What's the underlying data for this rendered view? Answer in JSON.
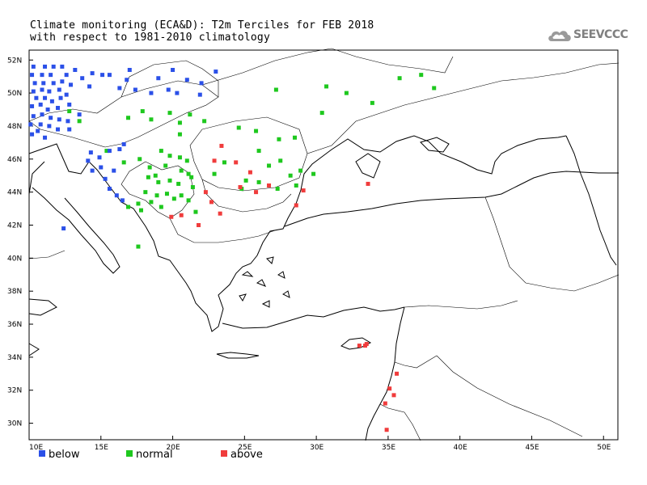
{
  "title": {
    "line1": "Climate monitoring (ECA&D): T2m Terciles for FEB 2018",
    "line2": "with respect to 1981-2010 climatology"
  },
  "logo": {
    "text": "SEEVCCC",
    "icon": "cloud-icon"
  },
  "colors": {
    "below": "#2b50e8",
    "normal": "#1ec81e",
    "above": "#f03c3c"
  },
  "legend": [
    {
      "key": "below",
      "label": "below"
    },
    {
      "key": "normal",
      "label": "normal"
    },
    {
      "key": "above",
      "label": "above"
    }
  ],
  "axes": {
    "lon_range": [
      10,
      51
    ],
    "lat_range": [
      29,
      52.6
    ],
    "x_ticks": [
      "10E",
      "15E",
      "20E",
      "25E",
      "30E",
      "35E",
      "40E",
      "45E",
      "50E"
    ],
    "y_ticks": [
      "30N",
      "32N",
      "34N",
      "36N",
      "38N",
      "40N",
      "42N",
      "44N",
      "46N",
      "48N",
      "50N",
      "52N"
    ]
  },
  "stations": {
    "below": [
      [
        10.3,
        51.6
      ],
      [
        11.1,
        51.6
      ],
      [
        11.7,
        51.6
      ],
      [
        12.3,
        51.6
      ],
      [
        13.2,
        51.4
      ],
      [
        14.4,
        51.2
      ],
      [
        15.1,
        51.1
      ],
      [
        15.6,
        51.1
      ],
      [
        17.0,
        51.4
      ],
      [
        20.0,
        51.4
      ],
      [
        23.0,
        51.3
      ],
      [
        10.2,
        51.1
      ],
      [
        10.9,
        51.1
      ],
      [
        11.5,
        51.1
      ],
      [
        12.6,
        51.1
      ],
      [
        13.7,
        50.9
      ],
      [
        16.8,
        50.8
      ],
      [
        19.0,
        50.9
      ],
      [
        21.0,
        50.8
      ],
      [
        22.0,
        50.6
      ],
      [
        10.4,
        50.6
      ],
      [
        11.0,
        50.6
      ],
      [
        11.7,
        50.6
      ],
      [
        12.3,
        50.7
      ],
      [
        12.9,
        50.5
      ],
      [
        14.2,
        50.4
      ],
      [
        16.3,
        50.3
      ],
      [
        17.4,
        50.2
      ],
      [
        19.7,
        50.2
      ],
      [
        10.3,
        50.1
      ],
      [
        10.9,
        50.2
      ],
      [
        11.4,
        50.1
      ],
      [
        12.1,
        50.2
      ],
      [
        12.6,
        49.9
      ],
      [
        18.5,
        50.0
      ],
      [
        20.3,
        50.0
      ],
      [
        21.9,
        49.9
      ],
      [
        10.5,
        49.7
      ],
      [
        11.1,
        49.7
      ],
      [
        11.6,
        49.5
      ],
      [
        12.2,
        49.7
      ],
      [
        12.8,
        49.3
      ],
      [
        10.2,
        49.2
      ],
      [
        10.8,
        49.3
      ],
      [
        11.3,
        49.0
      ],
      [
        12.0,
        49.1
      ],
      [
        10.3,
        48.6
      ],
      [
        10.9,
        48.7
      ],
      [
        11.5,
        48.5
      ],
      [
        12.1,
        48.4
      ],
      [
        12.7,
        48.3
      ],
      [
        13.5,
        48.7
      ],
      [
        10.1,
        48.1
      ],
      [
        10.8,
        48.1
      ],
      [
        11.4,
        48.0
      ],
      [
        12.0,
        47.8
      ],
      [
        12.8,
        47.8
      ],
      [
        10.6,
        47.7
      ],
      [
        10.2,
        47.5
      ],
      [
        11.1,
        47.3
      ],
      [
        14.3,
        46.4
      ],
      [
        14.9,
        46.1
      ],
      [
        15.6,
        46.5
      ],
      [
        16.3,
        46.6
      ],
      [
        16.6,
        46.9
      ],
      [
        14.1,
        45.9
      ],
      [
        15.0,
        45.5
      ],
      [
        14.4,
        45.3
      ],
      [
        15.9,
        45.3
      ],
      [
        15.3,
        44.8
      ],
      [
        15.6,
        44.2
      ],
      [
        16.1,
        43.8
      ],
      [
        16.5,
        43.5
      ],
      [
        12.4,
        41.8
      ]
    ],
    "normal": [
      [
        12.8,
        48.9
      ],
      [
        13.5,
        48.3
      ],
      [
        17.9,
        48.9
      ],
      [
        16.9,
        48.5
      ],
      [
        18.5,
        48.4
      ],
      [
        19.8,
        48.8
      ],
      [
        21.2,
        48.7
      ],
      [
        22.2,
        48.3
      ],
      [
        20.5,
        48.2
      ],
      [
        17.7,
        46.0
      ],
      [
        19.2,
        46.5
      ],
      [
        19.8,
        46.2
      ],
      [
        20.5,
        46.1
      ],
      [
        21.0,
        45.9
      ],
      [
        18.4,
        45.5
      ],
      [
        19.5,
        45.6
      ],
      [
        20.6,
        45.3
      ],
      [
        21.1,
        45.1
      ],
      [
        18.3,
        44.9
      ],
      [
        19.0,
        44.6
      ],
      [
        19.8,
        44.7
      ],
      [
        20.4,
        44.5
      ],
      [
        21.4,
        44.3
      ],
      [
        18.9,
        43.8
      ],
      [
        19.6,
        43.9
      ],
      [
        20.1,
        43.6
      ],
      [
        20.6,
        43.8
      ],
      [
        21.1,
        43.5
      ],
      [
        17.6,
        43.3
      ],
      [
        18.5,
        43.4
      ],
      [
        19.2,
        43.1
      ],
      [
        16.9,
        43.1
      ],
      [
        17.8,
        42.9
      ],
      [
        18.1,
        44.0
      ],
      [
        18.8,
        45.0
      ],
      [
        21.3,
        44.9
      ],
      [
        21.6,
        42.8
      ],
      [
        17.6,
        40.7
      ],
      [
        25.1,
        44.7
      ],
      [
        26.0,
        44.6
      ],
      [
        28.6,
        44.4
      ],
      [
        27.3,
        44.2
      ],
      [
        26.7,
        45.6
      ],
      [
        27.5,
        45.9
      ],
      [
        28.2,
        45.0
      ],
      [
        26.0,
        46.5
      ],
      [
        27.4,
        47.2
      ],
      [
        28.5,
        47.3
      ],
      [
        25.8,
        47.7
      ],
      [
        24.6,
        47.9
      ],
      [
        20.5,
        47.5
      ],
      [
        30.4,
        48.8
      ],
      [
        30.7,
        50.4
      ],
      [
        27.2,
        50.2
      ],
      [
        32.1,
        50.0
      ],
      [
        33.9,
        49.4
      ],
      [
        35.8,
        50.9
      ],
      [
        37.3,
        51.1
      ],
      [
        38.2,
        50.3
      ],
      [
        23.6,
        45.8
      ],
      [
        22.9,
        45.1
      ],
      [
        24.8,
        44.2
      ],
      [
        16.6,
        45.8
      ],
      [
        15.4,
        46.5
      ],
      [
        28.9,
        45.3
      ],
      [
        29.8,
        45.1
      ]
    ],
    "above": [
      [
        23.4,
        46.8
      ],
      [
        22.9,
        45.9
      ],
      [
        24.4,
        45.8
      ],
      [
        25.4,
        45.2
      ],
      [
        24.7,
        44.3
      ],
      [
        25.8,
        44.0
      ],
      [
        26.7,
        44.4
      ],
      [
        29.1,
        44.1
      ],
      [
        28.6,
        43.2
      ],
      [
        22.3,
        44.0
      ],
      [
        22.7,
        43.4
      ],
      [
        20.6,
        42.6
      ],
      [
        19.9,
        42.5
      ],
      [
        21.8,
        42.0
      ],
      [
        23.3,
        42.7
      ],
      [
        33.6,
        44.5
      ],
      [
        33.0,
        34.7
      ],
      [
        33.4,
        34.7
      ],
      [
        35.6,
        33.0
      ],
      [
        35.1,
        32.1
      ],
      [
        35.4,
        31.7
      ],
      [
        34.8,
        31.2
      ],
      [
        34.9,
        29.6
      ],
      [
        33.5,
        34.8
      ]
    ]
  }
}
